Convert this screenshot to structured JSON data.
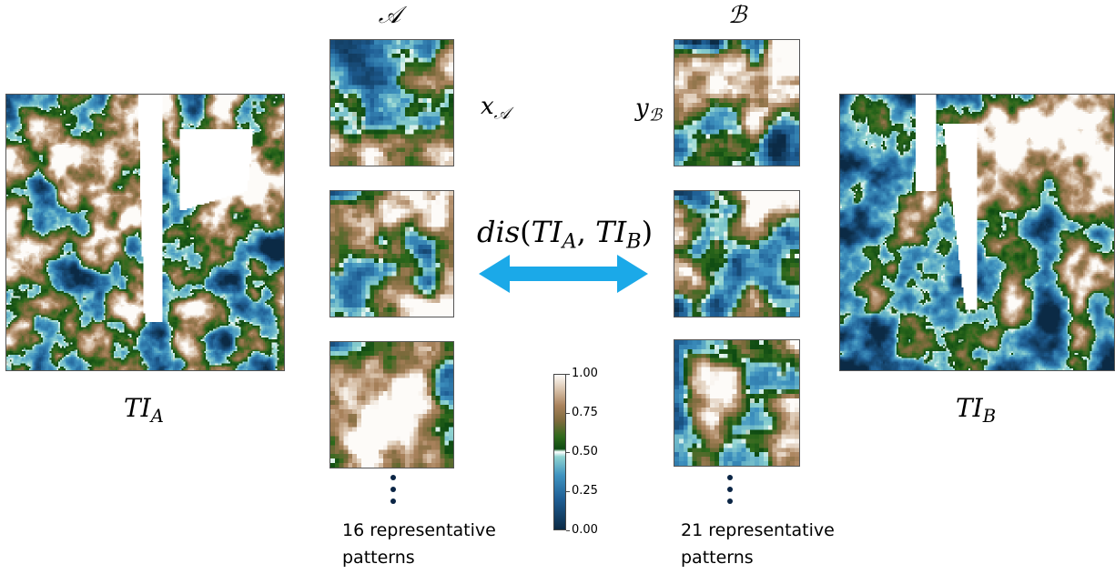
{
  "labels": {
    "set_a": "𝒜",
    "set_b": "ℬ",
    "x_main": "x",
    "x_sub": "𝒜",
    "y_main": "y",
    "y_sub": "ℬ",
    "dis_func": "dis",
    "dis_open": "(",
    "ti": "TI",
    "sub_a": "A",
    "comma": ", ",
    "sub_b": "B",
    "dis_close": ")",
    "ti_a_main": "TI",
    "ti_a_sub": "A",
    "ti_b_main": "TI",
    "ti_b_sub": "B"
  },
  "captions": {
    "a_line1": "16 representative",
    "a_line2": "patterns",
    "b_line1": "21 representative",
    "b_line2": "patterns"
  },
  "colorbar": {
    "ticks": [
      "1.00",
      "0.75",
      "0.50",
      "0.25",
      "0.00"
    ],
    "colors": [
      "#0b2a45",
      "#1f5f95",
      "#3f93c0",
      "#8fd3d0",
      "#ffffff",
      "#d6f0e8",
      "#0d4a12",
      "#2f6a1c",
      "#7c6a3c",
      "#a9825c",
      "#d7c0a8",
      "#fdfbf8"
    ]
  },
  "arrow_color": "#1ba9e8"
}
